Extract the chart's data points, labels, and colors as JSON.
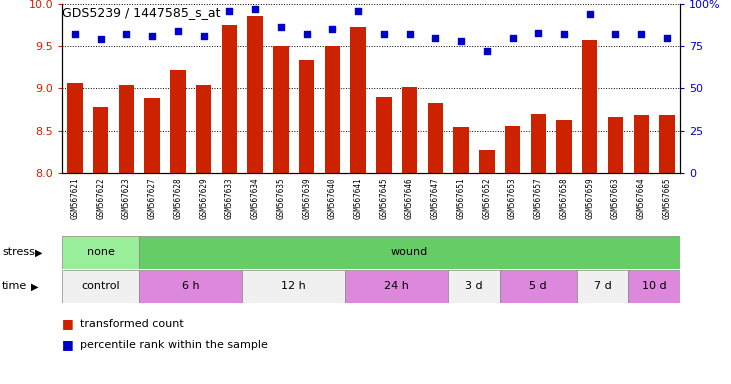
{
  "title": "GDS5239 / 1447585_s_at",
  "samples": [
    "GSM567621",
    "GSM567622",
    "GSM567623",
    "GSM567627",
    "GSM567628",
    "GSM567629",
    "GSM567633",
    "GSM567634",
    "GSM567635",
    "GSM567639",
    "GSM567640",
    "GSM567641",
    "GSM567645",
    "GSM567646",
    "GSM567647",
    "GSM567651",
    "GSM567652",
    "GSM567653",
    "GSM567657",
    "GSM567658",
    "GSM567659",
    "GSM567663",
    "GSM567664",
    "GSM567665"
  ],
  "bar_values": [
    9.06,
    8.78,
    9.04,
    8.88,
    9.22,
    9.04,
    9.75,
    9.86,
    9.5,
    9.33,
    9.5,
    9.72,
    8.9,
    9.01,
    8.83,
    8.54,
    8.27,
    8.55,
    8.7,
    8.62,
    9.57,
    8.66,
    8.68,
    8.69
  ],
  "dot_values": [
    82,
    79,
    82,
    81,
    84,
    81,
    96,
    97,
    86,
    82,
    85,
    96,
    82,
    82,
    80,
    78,
    72,
    80,
    83,
    82,
    94,
    82,
    82,
    80
  ],
  "bar_color": "#cc2200",
  "dot_color": "#0000cc",
  "ylim_left": [
    8.0,
    10.0
  ],
  "ylim_right": [
    0,
    100
  ],
  "yticks_left": [
    8.0,
    8.5,
    9.0,
    9.5,
    10.0
  ],
  "yticks_right": [
    0,
    25,
    50,
    75,
    100
  ],
  "stress_groups": [
    {
      "label": "none",
      "start": 0,
      "end": 3,
      "color": "#99ee99"
    },
    {
      "label": "wound",
      "start": 3,
      "end": 24,
      "color": "#66cc66"
    }
  ],
  "time_groups": [
    {
      "label": "control",
      "start": 0,
      "end": 3,
      "color": "#f0f0f0"
    },
    {
      "label": "6 h",
      "start": 3,
      "end": 7,
      "color": "#dd88dd"
    },
    {
      "label": "12 h",
      "start": 7,
      "end": 11,
      "color": "#f0f0f0"
    },
    {
      "label": "24 h",
      "start": 11,
      "end": 15,
      "color": "#dd88dd"
    },
    {
      "label": "3 d",
      "start": 15,
      "end": 17,
      "color": "#f0f0f0"
    },
    {
      "label": "5 d",
      "start": 17,
      "end": 20,
      "color": "#dd88dd"
    },
    {
      "label": "7 d",
      "start": 20,
      "end": 22,
      "color": "#f0f0f0"
    },
    {
      "label": "10 d",
      "start": 22,
      "end": 24,
      "color": "#dd88dd"
    }
  ]
}
